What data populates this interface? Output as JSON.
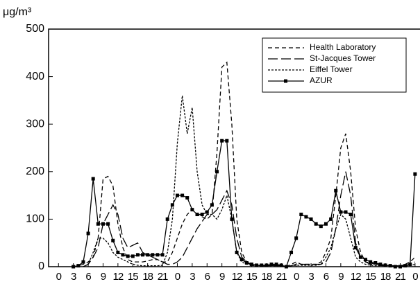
{
  "chart_data": {
    "type": "line",
    "y_label": "μg/m³",
    "x": [
      0,
      1,
      2,
      3,
      4,
      5,
      6,
      7,
      8,
      9,
      10,
      11,
      12,
      13,
      14,
      15,
      16,
      17,
      18,
      19,
      20,
      21,
      22,
      23,
      24,
      25,
      26,
      27,
      28,
      29,
      30,
      31,
      32,
      33,
      34,
      35,
      36,
      37,
      38,
      39,
      40,
      41,
      42,
      43,
      44,
      45,
      46,
      47,
      48,
      49,
      50,
      51,
      52,
      53,
      54,
      55,
      56,
      57,
      58,
      59,
      60,
      61,
      62,
      63,
      64,
      65,
      66,
      67,
      68,
      69,
      70,
      71,
      72
    ],
    "xlim": [
      -2,
      73
    ],
    "xticks": [
      0,
      3,
      6,
      9,
      12,
      15,
      18,
      21,
      {
        "value": 24,
        "label": "0"
      },
      {
        "value": 27,
        "label": "3"
      },
      {
        "value": 30,
        "label": "6"
      },
      {
        "value": 33,
        "label": "9"
      },
      {
        "value": 36,
        "label": "12"
      },
      {
        "value": 39,
        "label": "15"
      },
      {
        "value": 42,
        "label": "18"
      },
      {
        "value": 45,
        "label": "21"
      },
      {
        "value": 48,
        "label": "0"
      },
      {
        "value": 51,
        "label": "3"
      },
      {
        "value": 54,
        "label": "6"
      },
      {
        "value": 57,
        "label": "9"
      },
      {
        "value": 60,
        "label": "12"
      },
      {
        "value": 63,
        "label": "15"
      },
      {
        "value": 66,
        "label": "18"
      },
      {
        "value": 69,
        "label": "21"
      },
      {
        "value": 72,
        "label": "0"
      }
    ],
    "ylim": [
      0,
      500
    ],
    "yticks": [
      0,
      100,
      200,
      300,
      400,
      500
    ],
    "legend": "upper right",
    "series": [
      {
        "name": "Health Laboratory",
        "color": "#000000",
        "dash": "6,4",
        "values": [
          null,
          null,
          null,
          0,
          2,
          5,
          10,
          20,
          60,
          185,
          190,
          170,
          90,
          40,
          15,
          10,
          10,
          10,
          12,
          15,
          15,
          10,
          10,
          30,
          60,
          90,
          110,
          120,
          110,
          105,
          100,
          110,
          240,
          420,
          430,
          300,
          100,
          30,
          10,
          5,
          3,
          2,
          2,
          3,
          3,
          2,
          0,
          5,
          10,
          5,
          5,
          5,
          5,
          10,
          30,
          60,
          150,
          250,
          280,
          200,
          80,
          30,
          10,
          8,
          5,
          3,
          3,
          2,
          2,
          2,
          5,
          10,
          20
        ]
      },
      {
        "name": "St-Jacques Tower",
        "color": "#000000",
        "dash": "14,5",
        "values": [
          null,
          null,
          null,
          null,
          null,
          0,
          5,
          20,
          40,
          90,
          110,
          130,
          110,
          60,
          40,
          45,
          50,
          30,
          25,
          20,
          15,
          10,
          5,
          5,
          10,
          20,
          40,
          60,
          80,
          95,
          110,
          110,
          120,
          140,
          160,
          130,
          60,
          20,
          10,
          5,
          3,
          2,
          2,
          2,
          2,
          2,
          0,
          2,
          5,
          5,
          5,
          5,
          5,
          5,
          10,
          30,
          80,
          150,
          200,
          150,
          50,
          20,
          10,
          5,
          5,
          3,
          3,
          2,
          2,
          2,
          3,
          5,
          10
        ]
      },
      {
        "name": "Eiffel Tower",
        "color": "#000000",
        "dash": "3,2",
        "values": [
          null,
          null,
          null,
          null,
          null,
          0,
          5,
          30,
          60,
          60,
          50,
          30,
          20,
          15,
          10,
          5,
          3,
          2,
          2,
          2,
          2,
          3,
          30,
          100,
          260,
          360,
          280,
          335,
          200,
          130,
          110,
          110,
          100,
          120,
          150,
          100,
          30,
          10,
          5,
          3,
          2,
          2,
          2,
          2,
          2,
          2,
          0,
          2,
          3,
          3,
          3,
          3,
          3,
          5,
          20,
          40,
          80,
          110,
          100,
          60,
          20,
          10,
          5,
          3,
          2,
          2,
          2,
          2,
          2,
          2,
          2,
          2,
          5
        ]
      },
      {
        "name": "AZUR",
        "color": "#000000",
        "dash": "none",
        "marker": "square",
        "values": [
          null,
          null,
          null,
          0,
          2,
          10,
          70,
          185,
          90,
          90,
          90,
          55,
          30,
          25,
          22,
          22,
          25,
          25,
          25,
          25,
          25,
          25,
          100,
          130,
          150,
          150,
          145,
          120,
          110,
          110,
          115,
          130,
          200,
          265,
          265,
          100,
          30,
          15,
          8,
          5,
          3,
          3,
          3,
          5,
          5,
          3,
          0,
          30,
          60,
          110,
          105,
          100,
          90,
          85,
          90,
          100,
          160,
          115,
          115,
          110,
          40,
          20,
          15,
          10,
          8,
          5,
          3,
          2,
          0,
          0,
          2,
          5,
          195
        ]
      }
    ]
  }
}
